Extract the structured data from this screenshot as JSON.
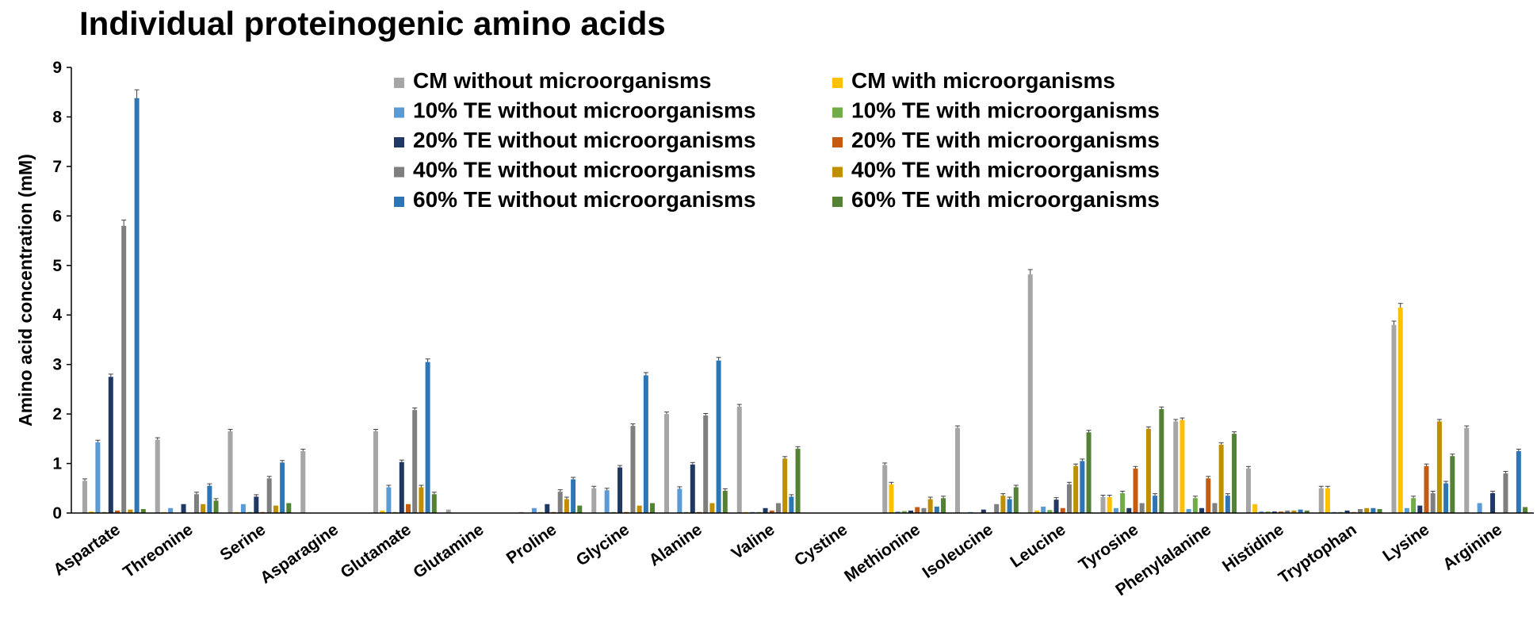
{
  "chart_data": {
    "type": "bar",
    "title": "Individual proteinogenic amino acids",
    "ylabel": "Amino acid concentration (mM)",
    "xlabel": "",
    "ylim": [
      0,
      9
    ],
    "yticks": [
      "0",
      "1",
      "2",
      "3",
      "4",
      "5",
      "6",
      "7",
      "8",
      "9"
    ],
    "grid": false,
    "legend_position": "top-center",
    "categories": [
      "Aspartate",
      "Threonine",
      "Serine",
      "Asparagine",
      "Glutamate",
      "Glutamine",
      "Proline",
      "Glycine",
      "Alanine",
      "Valine",
      "Cystine",
      "Methionine",
      "Isoleucine",
      "Leucine",
      "Tyrosine",
      "Phenylalanine",
      "Histidine",
      "Tryptophan",
      "Lysine",
      "Arginine"
    ],
    "series": [
      {
        "name": "CM without microorganisms",
        "color": "#a6a6a6",
        "values": [
          0.65,
          1.48,
          1.65,
          1.25,
          1.65,
          0.07,
          0.02,
          0.5,
          2.0,
          2.15,
          0.0,
          0.97,
          1.72,
          4.82,
          0.32,
          1.85,
          0.9,
          0.5,
          3.8,
          1.72
        ]
      },
      {
        "name": "CM with microorganisms",
        "color": "#ffc000",
        "values": [
          0.03,
          0.02,
          0.02,
          0.0,
          0.05,
          0.0,
          0.0,
          0.0,
          0.0,
          0.02,
          0.0,
          0.58,
          0.0,
          0.05,
          0.32,
          1.88,
          0.18,
          0.5,
          4.15,
          0.0
        ]
      },
      {
        "name": "10% TE without microorganisms",
        "color": "#5b9bd5",
        "values": [
          1.43,
          0.1,
          0.18,
          0.0,
          0.52,
          0.0,
          0.1,
          0.46,
          0.49,
          0.02,
          0.0,
          0.03,
          0.02,
          0.13,
          0.1,
          0.08,
          0.03,
          0.02,
          0.1,
          0.2
        ]
      },
      {
        "name": "10% TE with microorganisms",
        "color": "#70ad47",
        "values": [
          0.02,
          0.0,
          0.02,
          0.0,
          0.02,
          0.0,
          0.02,
          0.02,
          0.02,
          0.02,
          0.0,
          0.04,
          0.0,
          0.06,
          0.4,
          0.3,
          0.03,
          0.02,
          0.3,
          0.0
        ]
      },
      {
        "name": "20% TE without microorganisms",
        "color": "#203864",
        "values": [
          2.75,
          0.18,
          0.33,
          0.0,
          1.03,
          0.0,
          0.18,
          0.92,
          0.98,
          0.1,
          0.0,
          0.05,
          0.07,
          0.27,
          0.1,
          0.1,
          0.03,
          0.05,
          0.15,
          0.4
        ]
      },
      {
        "name": "20% TE with microorganisms",
        "color": "#c55a11",
        "values": [
          0.05,
          0.0,
          0.02,
          0.0,
          0.18,
          0.0,
          0.02,
          0.02,
          0.02,
          0.05,
          0.0,
          0.12,
          0.0,
          0.1,
          0.9,
          0.7,
          0.03,
          0.02,
          0.95,
          0.0
        ]
      },
      {
        "name": "40% TE without microorganisms",
        "color": "#7f7f7f",
        "values": [
          5.8,
          0.38,
          0.7,
          0.0,
          2.08,
          0.0,
          0.43,
          1.76,
          1.97,
          0.2,
          0.0,
          0.1,
          0.18,
          0.58,
          0.2,
          0.2,
          0.05,
          0.08,
          0.4,
          0.8
        ]
      },
      {
        "name": "40% TE with microorganisms",
        "color": "#bf8f00",
        "values": [
          0.07,
          0.18,
          0.15,
          0.0,
          0.52,
          0.0,
          0.28,
          0.15,
          0.2,
          1.1,
          0.0,
          0.28,
          0.35,
          0.95,
          1.7,
          1.38,
          0.05,
          0.1,
          1.85,
          0.0
        ]
      },
      {
        "name": "60% TE without microorganisms",
        "color": "#2e75b6",
        "values": [
          8.38,
          0.55,
          1.02,
          0.0,
          3.05,
          0.0,
          0.68,
          2.78,
          3.08,
          0.33,
          0.0,
          0.13,
          0.28,
          1.05,
          0.35,
          0.35,
          0.07,
          0.1,
          0.6,
          1.25
        ]
      },
      {
        "name": "60% TE with microorganisms",
        "color": "#548235",
        "values": [
          0.08,
          0.25,
          0.2,
          0.0,
          0.38,
          0.0,
          0.15,
          0.2,
          0.45,
          1.3,
          0.0,
          0.3,
          0.52,
          1.63,
          2.1,
          1.6,
          0.05,
          0.08,
          1.15,
          0.12
        ]
      }
    ]
  }
}
